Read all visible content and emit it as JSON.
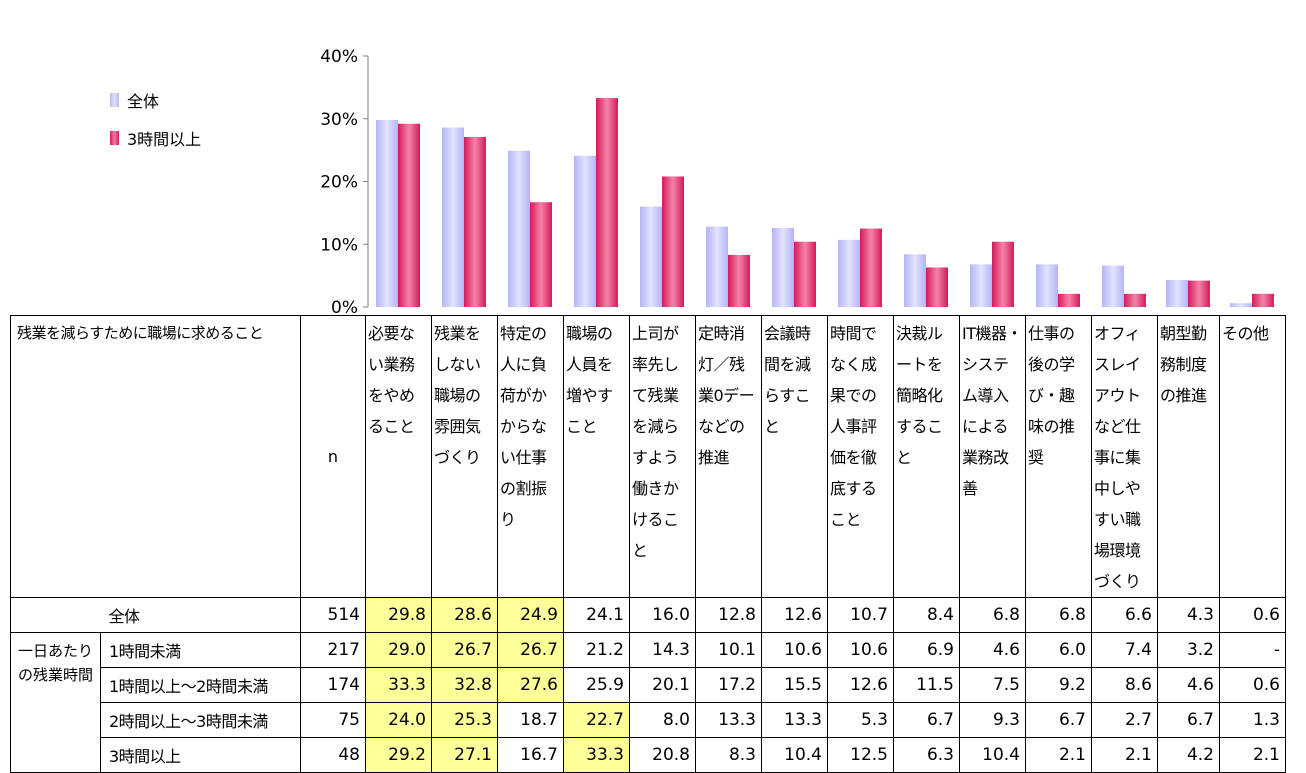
{
  "legend": {
    "all_label": "全体",
    "long_label": "3時間以上",
    "all_color": "#c0c0ff",
    "long_color": "#e8336a"
  },
  "chart_data": {
    "type": "bar",
    "ylim": [
      0,
      40
    ],
    "yticks": [
      "0%",
      "10%",
      "20%",
      "30%",
      "40%"
    ],
    "categories": [
      "必要ない業務をやめること",
      "残業をしない職場の雰囲気づくり",
      "特定の人に負荷がかからない仕事の割振り",
      "職場の人員を増やすこと",
      "上司が率先して残業を減らすよう働きかけること",
      "定時消灯／残業0デーなどの推進",
      "会議時間を減らすこと",
      "時間でなく成果での人事評価を徹底すること",
      "決裁ルートを簡略化すること",
      "IT機器・システム導入による業務改善",
      "仕事の後の学び・趣味の推奨",
      "オフィスレイアウトなど仕事に集中しやすい職場環境づくり",
      "朝型勤務制度の推進",
      "その他"
    ],
    "series": [
      {
        "name": "全体",
        "values": [
          29.8,
          28.6,
          24.9,
          24.1,
          16.0,
          12.8,
          12.6,
          10.7,
          8.4,
          6.8,
          6.8,
          6.6,
          4.3,
          0.6
        ]
      },
      {
        "name": "3時間以上",
        "values": [
          29.2,
          27.1,
          16.7,
          33.3,
          20.8,
          8.3,
          10.4,
          12.5,
          6.3,
          10.4,
          2.1,
          2.1,
          4.2,
          2.1
        ]
      }
    ]
  },
  "table": {
    "corner": "残業を減らすために職場に求めること",
    "n_header": "n",
    "col_headers": [
      "必要ない業務をやめること",
      "残業をしない職場の雰囲気づくり",
      "特定の人に負荷がかからない仕事の割振り",
      "職場の人員を増やすこと",
      "上司が率先して残業を減らすよう働きかけること",
      "定時消灯／残業0デーなどの推進",
      "会議時間を減らすこと",
      "時間でなく成果での人事評価を徹底すること",
      "決裁ルートを簡略化すること",
      "IT機器・システム導入による業務改善",
      "仕事の後の学び・趣味の推奨",
      "オフィスレイアウトなど仕事に集中しやすい職場環境づくり",
      "朝型勤務制度の推進",
      "その他"
    ],
    "group_label": "一日あたりの残業時間",
    "rows": [
      {
        "label": "全体",
        "n": "514",
        "values": [
          "29.8",
          "28.6",
          "24.9",
          "24.1",
          "16.0",
          "12.8",
          "12.6",
          "10.7",
          "8.4",
          "6.8",
          "6.8",
          "6.6",
          "4.3",
          "0.6"
        ],
        "hl": [
          0,
          1,
          2
        ]
      },
      {
        "label": "1時間未満",
        "n": "217",
        "values": [
          "29.0",
          "26.7",
          "26.7",
          "21.2",
          "14.3",
          "10.1",
          "10.6",
          "10.6",
          "6.9",
          "4.6",
          "6.0",
          "7.4",
          "3.2",
          "-"
        ],
        "hl": [
          0,
          1,
          2
        ]
      },
      {
        "label": "1時間以上～2時間未満",
        "n": "174",
        "values": [
          "33.3",
          "32.8",
          "27.6",
          "25.9",
          "20.1",
          "17.2",
          "15.5",
          "12.6",
          "11.5",
          "7.5",
          "9.2",
          "8.6",
          "4.6",
          "0.6"
        ],
        "hl": [
          0,
          1,
          2
        ]
      },
      {
        "label": "2時間以上～3時間未満",
        "n": "75",
        "values": [
          "24.0",
          "25.3",
          "18.7",
          "22.7",
          "8.0",
          "13.3",
          "13.3",
          "5.3",
          "6.7",
          "9.3",
          "6.7",
          "2.7",
          "6.7",
          "1.3"
        ],
        "hl": [
          0,
          1,
          3
        ]
      },
      {
        "label": "3時間以上",
        "n": "48",
        "values": [
          "29.2",
          "27.1",
          "16.7",
          "33.3",
          "20.8",
          "8.3",
          "10.4",
          "12.5",
          "6.3",
          "10.4",
          "2.1",
          "2.1",
          "4.2",
          "2.1"
        ],
        "hl": [
          0,
          1,
          3
        ]
      }
    ]
  }
}
